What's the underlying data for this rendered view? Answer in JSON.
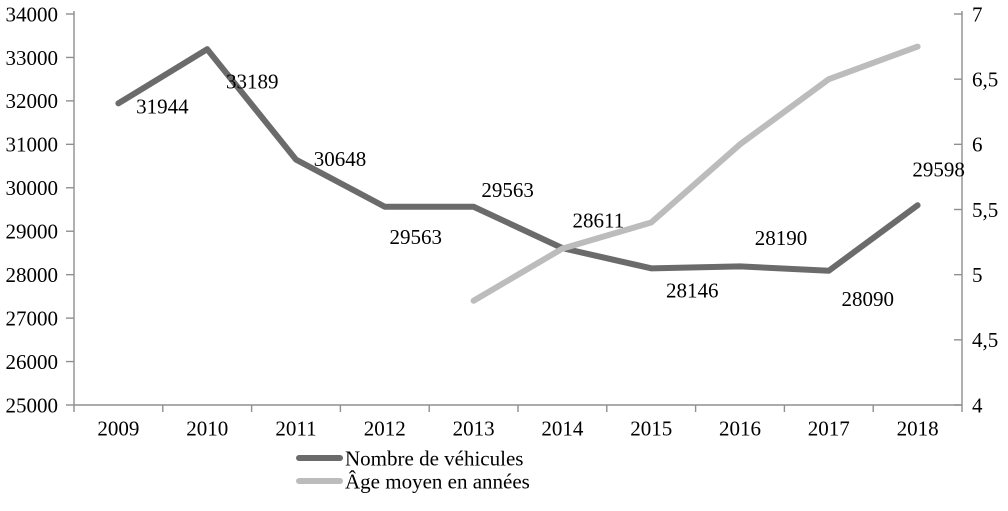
{
  "chart_data": {
    "type": "line",
    "title": "",
    "xlabel": "",
    "ylabel": "",
    "grid": false,
    "categories": [
      "2009",
      "2010",
      "2011",
      "2012",
      "2013",
      "2014",
      "2015",
      "2016",
      "2017",
      "2018"
    ],
    "series": [
      {
        "name": "Nombre de véhicules",
        "axis": "left",
        "color": "#6b6b6b",
        "values": [
          31944,
          33189,
          30648,
          29563,
          29563,
          28611,
          28146,
          28190,
          28090,
          29598
        ],
        "data_labels": [
          "31944",
          "33189",
          "30648",
          "29563",
          "29563",
          "28611",
          "28146",
          "28190",
          "28090",
          "29598"
        ],
        "label_offsets": [
          [
            44,
            3
          ],
          [
            45,
            32
          ],
          [
            44,
            -1
          ],
          [
            31,
            30
          ],
          [
            34,
            -17
          ],
          [
            36,
            -28
          ],
          [
            41,
            22
          ],
          [
            41,
            -29
          ],
          [
            39,
            28
          ],
          [
            21,
            -36
          ]
        ]
      },
      {
        "name": "Âge moyen en années",
        "axis": "right",
        "color": "#bcbcbc",
        "values": [
          null,
          null,
          null,
          null,
          4.8,
          5.2,
          5.4,
          6.0,
          6.5,
          6.75
        ],
        "data_labels": [],
        "label_offsets": []
      }
    ],
    "left_axis": {
      "min": 25000,
      "max": 34000,
      "step": 1000,
      "tick_labels": [
        "25000",
        "26000",
        "27000",
        "28000",
        "29000",
        "30000",
        "31000",
        "32000",
        "33000",
        "34000"
      ]
    },
    "right_axis": {
      "min": 4,
      "max": 7,
      "step": 0.5,
      "tick_labels": [
        "4",
        "4,5",
        "5",
        "5,5",
        "6",
        "6,5",
        "7"
      ]
    },
    "legend": {
      "position": "bottom-center",
      "items": [
        "Nombre de véhicules",
        "Âge moyen en années"
      ]
    },
    "colors": {
      "axis": "#8f8f8f",
      "text": "#000000",
      "background": "#ffffff"
    }
  }
}
